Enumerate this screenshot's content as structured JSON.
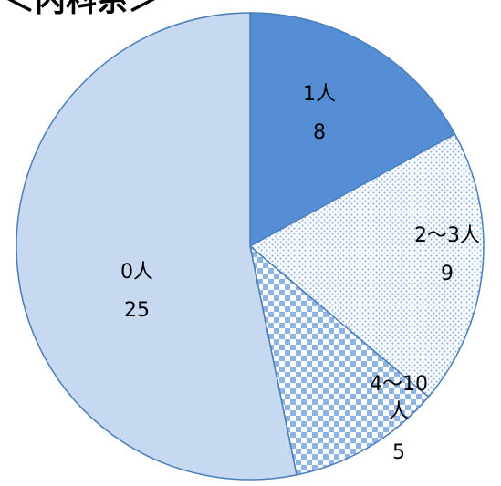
{
  "chart_data": {
    "type": "pie",
    "title": "＜内科系＞",
    "categories": [
      "1人",
      "2～3人",
      "4～10人",
      "0人"
    ],
    "values": [
      8,
      9,
      5,
      25
    ],
    "slices": [
      {
        "label": "1人",
        "value": 8,
        "value_label": "8",
        "color": "#558ed5",
        "pattern": "solid"
      },
      {
        "label": "2～3人",
        "value": 9,
        "value_label": "9",
        "color": "#8eb4e3",
        "pattern": "dots"
      },
      {
        "label": "4～10人",
        "value": 5,
        "value_label": "5",
        "color": "#8eb4e3",
        "pattern": "checker"
      },
      {
        "label": "0人",
        "value": 25,
        "value_label": "25",
        "color": "#c6d9f1",
        "pattern": "solid"
      }
    ],
    "start_angle": "12 o'clock",
    "direction": "clockwise",
    "legend": "none",
    "outline_color": "#4a7ebb"
  }
}
